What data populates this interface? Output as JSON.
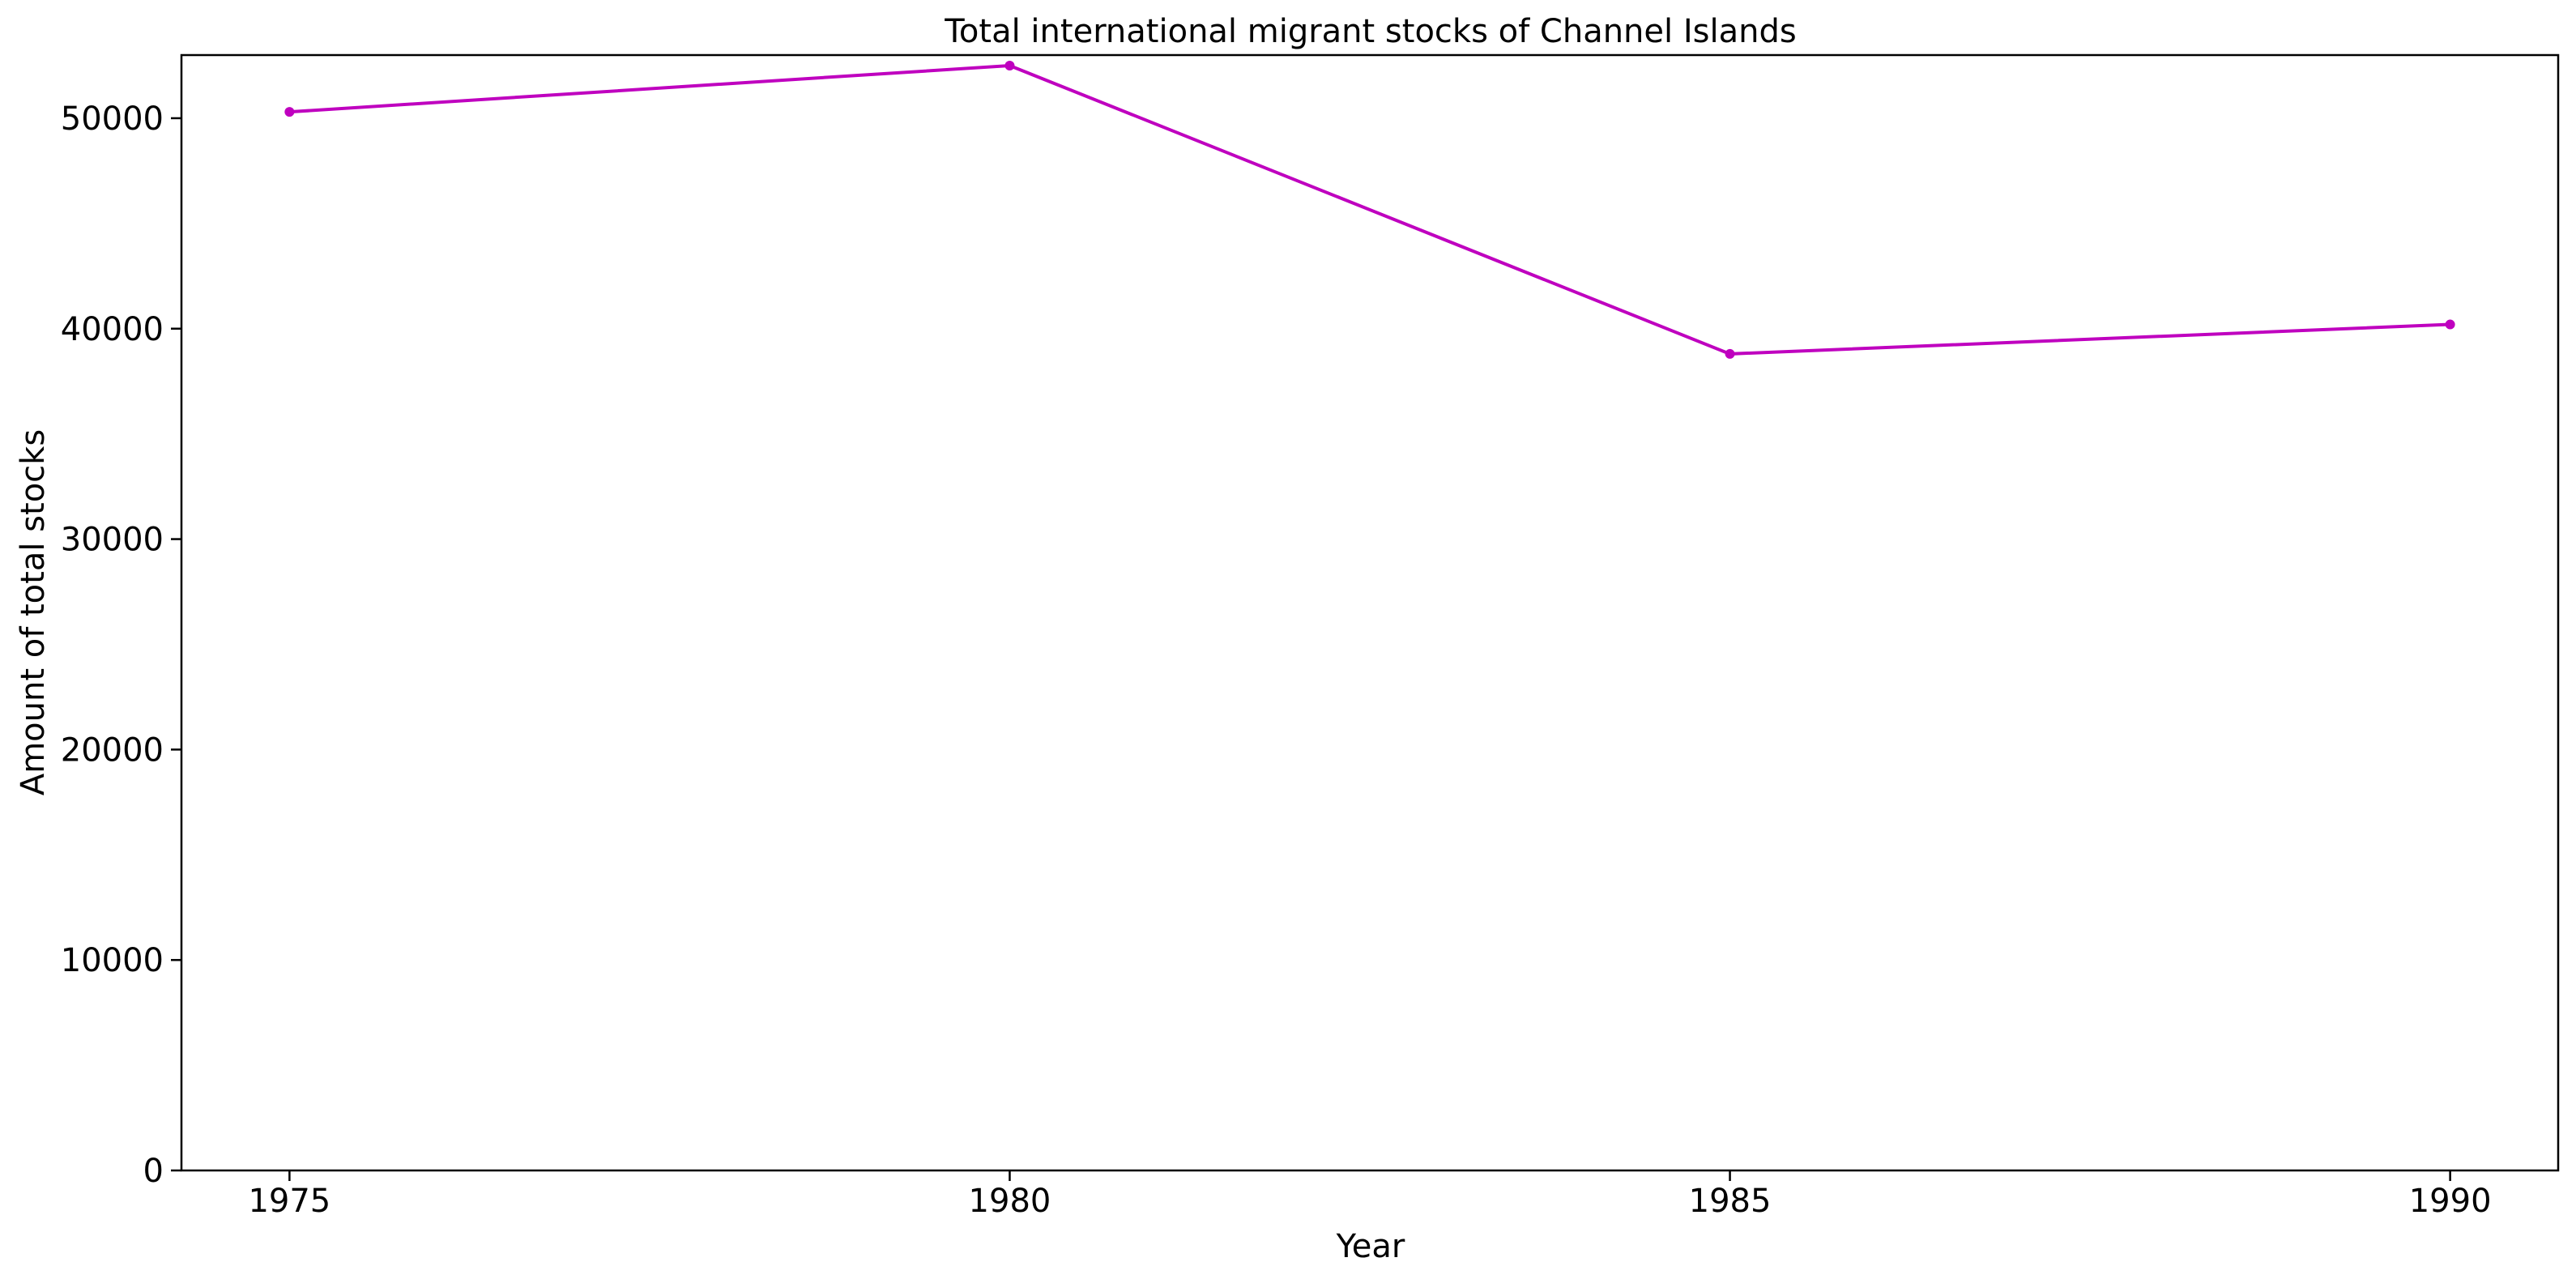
{
  "chart_data": {
    "type": "line",
    "title": "Total international migrant stocks of Channel Islands",
    "xlabel": "Year",
    "ylabel": "Amount of total stocks",
    "x": [
      1975,
      1980,
      1985,
      1990
    ],
    "x_ticks": [
      "1975",
      "1980",
      "1985",
      "1990"
    ],
    "y_ticks": [
      "0",
      "10000",
      "20000",
      "30000",
      "40000",
      "50000"
    ],
    "xlim": [
      1974.25,
      1990.75
    ],
    "ylim": [
      0,
      53000
    ],
    "grid": false,
    "legend": "none",
    "series": [
      {
        "values": [
          50300,
          52500,
          38800,
          40200
        ],
        "color": "#bf00bf",
        "marker": "circle"
      }
    ]
  }
}
